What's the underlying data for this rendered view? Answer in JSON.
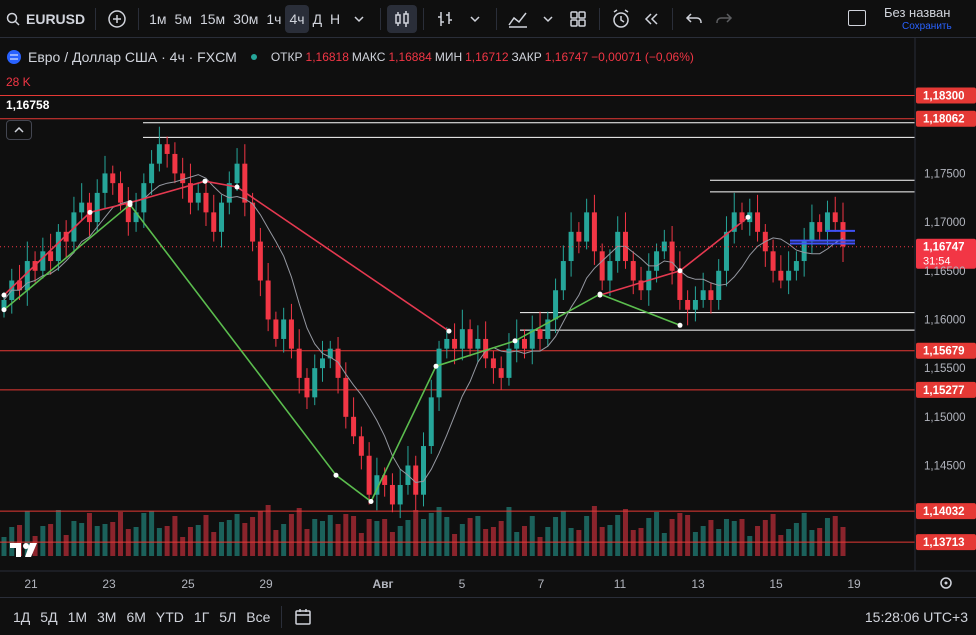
{
  "toolbar": {
    "symbol": "EURUSD",
    "intervals": [
      "1м",
      "5м",
      "15м",
      "30м",
      "1ч",
      "4ч",
      "Д",
      "Н"
    ],
    "active_interval": "4ч",
    "save_title": "Без назван",
    "save_sub": "Сохранить"
  },
  "legend": {
    "title": "Евро / Доллар США · 4ч · FXCM",
    "open_label": "ОТКР",
    "open": "1,16818",
    "high_label": "МАКС",
    "high": "1,16884",
    "low_label": "МИН",
    "low": "1,16712",
    "close_label": "ЗАКР",
    "close": "1,16747",
    "change": "−0,00071 (−0,06%)"
  },
  "volume_label": "28 K",
  "indicator_value": "1,16758",
  "price_axis": {
    "ticks": [
      "1,17500",
      "1,17000",
      "1,16500",
      "1,16000",
      "1,15500",
      "1,15000",
      "1,14500"
    ],
    "tick_values": [
      1.175,
      1.17,
      1.165,
      1.16,
      1.155,
      1.15,
      1.145
    ],
    "level_tags": [
      "1,18300",
      "1,18062",
      "1,15679",
      "1,15277",
      "1,14032",
      "1,13713"
    ],
    "level_values": [
      1.183,
      1.18062,
      1.15679,
      1.15277,
      1.14032,
      1.13713
    ],
    "current_price": "1,16747",
    "current_value": 1.16747,
    "countdown": "31:54"
  },
  "time_axis": [
    "21",
    "23",
    "25",
    "29",
    "Авг",
    "5",
    "7",
    "11",
    "13",
    "15",
    "19"
  ],
  "bottom": {
    "ranges": [
      "1Д",
      "5Д",
      "1М",
      "3М",
      "6М",
      "YTD",
      "1Г",
      "5Л",
      "Все"
    ],
    "clock": "15:28:06 UTC+3"
  },
  "colors": {
    "up": "#26a69a",
    "down": "#f23645",
    "level": "#e53935",
    "white_level": "#ffffff",
    "bg": "#0f0f0f"
  },
  "chart_data": {
    "type": "candlestick",
    "ylim": [
      1.1355,
      1.1848
    ],
    "closes": [
      1.162,
      1.164,
      1.163,
      1.166,
      1.165,
      1.167,
      1.166,
      1.169,
      1.168,
      1.171,
      1.172,
      1.17,
      1.173,
      1.175,
      1.174,
      1.172,
      1.17,
      1.171,
      1.174,
      1.176,
      1.178,
      1.177,
      1.175,
      1.174,
      1.172,
      1.173,
      1.171,
      1.169,
      1.172,
      1.174,
      1.176,
      1.172,
      1.168,
      1.164,
      1.16,
      1.158,
      1.16,
      1.157,
      1.154,
      1.152,
      1.155,
      1.156,
      1.157,
      1.154,
      1.15,
      1.148,
      1.146,
      1.142,
      1.144,
      1.143,
      1.141,
      1.143,
      1.145,
      1.142,
      1.147,
      1.152,
      1.157,
      1.158,
      1.157,
      1.159,
      1.157,
      1.158,
      1.156,
      1.155,
      1.154,
      1.157,
      1.158,
      1.157,
      1.159,
      1.158,
      1.16,
      1.163,
      1.166,
      1.169,
      1.168,
      1.171,
      1.167,
      1.164,
      1.166,
      1.169,
      1.166,
      1.164,
      1.163,
      1.165,
      1.167,
      1.168,
      1.165,
      1.162,
      1.161,
      1.162,
      1.163,
      1.162,
      1.165,
      1.169,
      1.171,
      1.17,
      1.171,
      1.169,
      1.167,
      1.165,
      1.164,
      1.165,
      1.166,
      1.168,
      1.17,
      1.169,
      1.171,
      1.17,
      1.1675
    ]
  }
}
